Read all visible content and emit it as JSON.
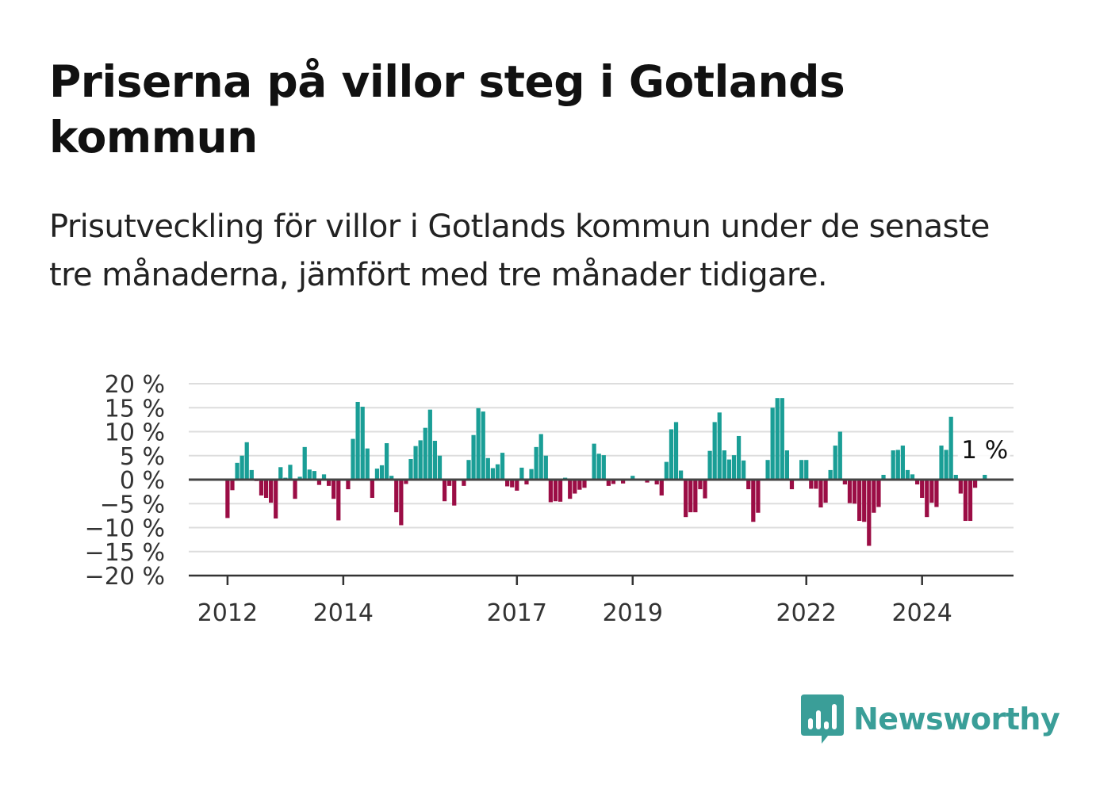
{
  "title": "Priserna på villor steg i Gotlands kommun",
  "subtitle": "Prisutveckling för villor i Gotlands kommun under de senaste tre månaderna, jämfört med tre månader tidigare.",
  "brand": {
    "name": "Newsworthy",
    "logo_icon": "bar-chart-speech-bubble-icon",
    "color": "#3a9e98"
  },
  "chart_data": {
    "type": "bar",
    "ylim": [
      -20,
      20
    ],
    "yticks": [
      {
        "value": 20,
        "label": "20 %"
      },
      {
        "value": 15,
        "label": "15 %"
      },
      {
        "value": 10,
        "label": "10 %"
      },
      {
        "value": 5,
        "label": "5 %"
      },
      {
        "value": 0,
        "label": "0 %"
      },
      {
        "value": -5,
        "label": "−5 %"
      },
      {
        "value": -10,
        "label": "−10 %"
      },
      {
        "value": -15,
        "label": "−15 %"
      },
      {
        "value": -20,
        "label": "−20 %"
      }
    ],
    "xticks": [
      {
        "value": 2012,
        "label": "2012"
      },
      {
        "value": 2014,
        "label": "2014"
      },
      {
        "value": 2017,
        "label": "2017"
      },
      {
        "value": 2019,
        "label": "2019"
      },
      {
        "value": 2022,
        "label": "2022"
      },
      {
        "value": 2024,
        "label": "2024"
      }
    ],
    "xlim": [
      2011.33,
      2025.58
    ],
    "start": "2012-01",
    "grid": true,
    "colors": {
      "positive": "#1a9e96",
      "negative": "#9b0d45"
    },
    "values": [
      -8,
      -2.2,
      3.5,
      5,
      7.8,
      2,
      -0.3,
      -3.3,
      -3.8,
      -4.8,
      -8.1,
      2.6,
      0.4,
      3.1,
      -4,
      0.6,
      6.8,
      2.1,
      1.8,
      -1.1,
      1.1,
      -1.3,
      -4,
      -8.5,
      0,
      -2,
      8.5,
      16.2,
      15.2,
      6.5,
      -3.8,
      2.3,
      3,
      7.6,
      0.8,
      -6.8,
      -9.5,
      -0.9,
      4.3,
      7,
      8.2,
      10.8,
      14.6,
      8.1,
      5,
      -4.5,
      -1.3,
      -5.4,
      0.2,
      -1.3,
      4.1,
      9.3,
      14.9,
      14.2,
      4.5,
      2.4,
      3.2,
      5.6,
      -1.4,
      -1.6,
      -2.3,
      2.5,
      -1,
      2.2,
      6.8,
      9.5,
      5,
      -4.7,
      -4.5,
      -4.6,
      0.4,
      -4,
      -2.9,
      -2.1,
      -1.7,
      0,
      7.5,
      5.4,
      5.1,
      -1.3,
      -0.9,
      -0.2,
      -0.8,
      0,
      0.8,
      0,
      0,
      -0.6,
      0,
      -1,
      -3.3,
      3.7,
      10.5,
      12,
      1.9,
      -7.8,
      -6.8,
      -6.8,
      -2,
      -3.9,
      6,
      12,
      14,
      6.1,
      4.2,
      5.1,
      9.1,
      4,
      -2,
      -8.8,
      -6.9,
      0,
      4.1,
      15,
      17,
      17,
      6.1,
      -2,
      0,
      4.1,
      4.1,
      -1.9,
      -1.9,
      -5.8,
      -4.8,
      2,
      7.1,
      10,
      -1,
      -4.9,
      -5,
      -8.6,
      -8.8,
      -13.8,
      -6.9,
      -5.7,
      1,
      0,
      6.1,
      6.2,
      7.1,
      2,
      1.1,
      -1,
      -3.8,
      -7.8,
      -4.8,
      -5.7,
      7.1,
      6.2,
      13.1,
      1,
      -2.9,
      -8.6,
      -8.6,
      -1.7,
      0,
      1
    ],
    "annotation": {
      "label": "1 %",
      "value": 1
    }
  }
}
